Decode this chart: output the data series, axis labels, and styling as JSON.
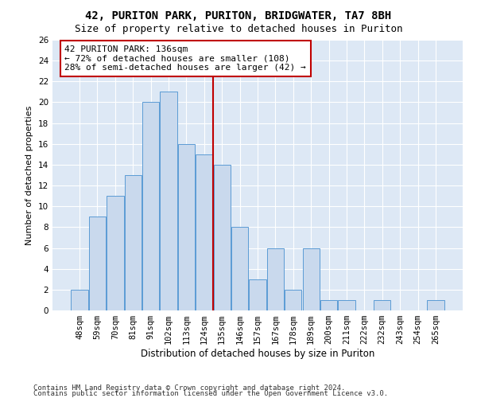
{
  "title1": "42, PURITON PARK, PURITON, BRIDGWATER, TA7 8BH",
  "title2": "Size of property relative to detached houses in Puriton",
  "xlabel": "Distribution of detached houses by size in Puriton",
  "ylabel": "Number of detached properties",
  "bar_labels": [
    "48sqm",
    "59sqm",
    "70sqm",
    "81sqm",
    "91sqm",
    "102sqm",
    "113sqm",
    "124sqm",
    "135sqm",
    "146sqm",
    "157sqm",
    "167sqm",
    "178sqm",
    "189sqm",
    "200sqm",
    "211sqm",
    "222sqm",
    "232sqm",
    "243sqm",
    "254sqm",
    "265sqm"
  ],
  "bar_values": [
    2,
    9,
    11,
    13,
    20,
    21,
    16,
    15,
    14,
    8,
    3,
    6,
    2,
    6,
    1,
    1,
    0,
    1,
    0,
    0,
    1
  ],
  "bar_color": "#c9d9ed",
  "bar_edge_color": "#5b9bd5",
  "vline_color": "#c00000",
  "vline_pos": 8.5,
  "annotation_text": "42 PURITON PARK: 136sqm\n← 72% of detached houses are smaller (108)\n28% of semi-detached houses are larger (42) →",
  "annotation_box_color": "#ffffff",
  "annotation_box_edge_color": "#c00000",
  "ylim": [
    0,
    26
  ],
  "yticks": [
    0,
    2,
    4,
    6,
    8,
    10,
    12,
    14,
    16,
    18,
    20,
    22,
    24,
    26
  ],
  "bg_color": "#dde8f5",
  "footer_line1": "Contains HM Land Registry data © Crown copyright and database right 2024.",
  "footer_line2": "Contains public sector information licensed under the Open Government Licence v3.0.",
  "title1_fontsize": 10,
  "title2_fontsize": 9,
  "xlabel_fontsize": 8.5,
  "ylabel_fontsize": 8,
  "tick_fontsize": 7.5,
  "annotation_fontsize": 8,
  "footer_fontsize": 6.5
}
